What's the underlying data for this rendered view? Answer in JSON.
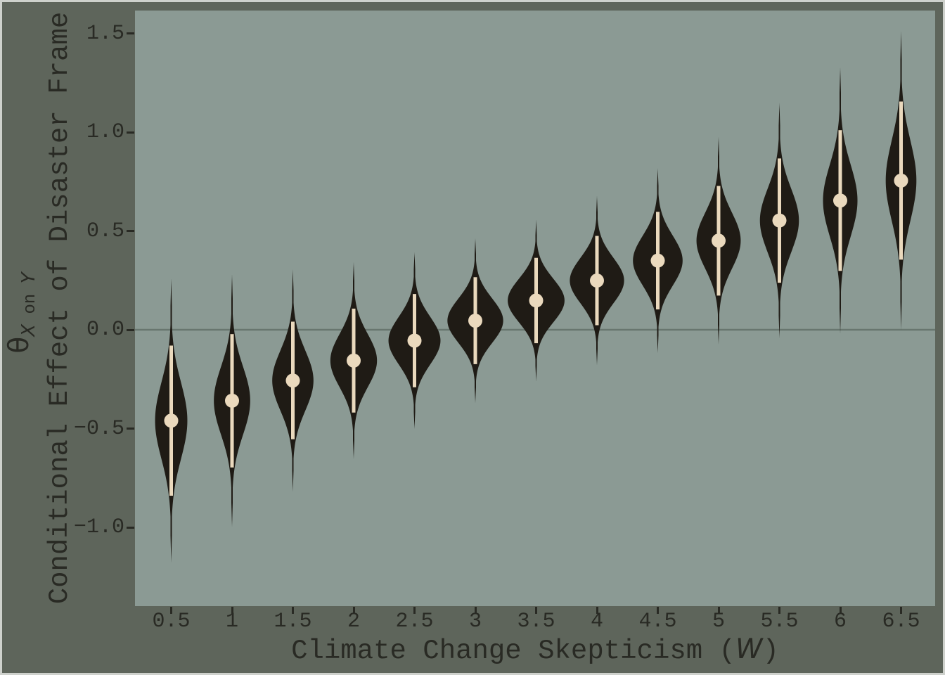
{
  "colors": {
    "figure_background": "#5e655b",
    "panel_background": "#8b9a94",
    "violin_fill": "#1f1b15",
    "interval_and_point": "#ead9bd",
    "zero_line": "#68766f",
    "text": "#292a24",
    "outer_frame": "#ced1cc"
  },
  "x_axis": {
    "label_prefix": "Climate Change Skepticism (",
    "label_var": "W",
    "label_suffix": ")",
    "ticks": [
      {
        "value": 0.5,
        "label": "0.5"
      },
      {
        "value": 1,
        "label": "1"
      },
      {
        "value": 1.5,
        "label": "1.5"
      },
      {
        "value": 2,
        "label": "2"
      },
      {
        "value": 2.5,
        "label": "2.5"
      },
      {
        "value": 3,
        "label": "3"
      },
      {
        "value": 3.5,
        "label": "3.5"
      },
      {
        "value": 4,
        "label": "4"
      },
      {
        "value": 4.5,
        "label": "4.5"
      },
      {
        "value": 5,
        "label": "5"
      },
      {
        "value": 5.5,
        "label": "5.5"
      },
      {
        "value": 6,
        "label": "6"
      },
      {
        "value": 6.5,
        "label": "6.5"
      }
    ]
  },
  "y_axis": {
    "label_main": "Conditional Effect of Disaster Frame",
    "label_theta": "θ",
    "label_theta_sub_x": "X",
    "label_theta_sub_on": " on ",
    "label_theta_sub_y": "Y",
    "ticks": [
      {
        "value": 1.5,
        "label": "1.5"
      },
      {
        "value": 1.0,
        "label": "1.0"
      },
      {
        "value": 0.5,
        "label": "0.5"
      },
      {
        "value": 0.0,
        "label": "0.0"
      },
      {
        "value": -0.5,
        "label": "−0.5"
      },
      {
        "value": -1.0,
        "label": "−1.0"
      }
    ]
  },
  "chart_data": {
    "type": "violin",
    "title": "",
    "xlabel": "Climate Change Skepticism (W)",
    "ylabel": "Conditional Effect of Disaster Frame θ_{X on Y}",
    "xlim": [
      0.2,
      6.78
    ],
    "ylim": [
      -1.4,
      1.62
    ],
    "grid": false,
    "reference_line_y": 0.0,
    "x": [
      0.5,
      1,
      1.5,
      2,
      2.5,
      3,
      3.5,
      4,
      4.5,
      5,
      5.5,
      6,
      6.5
    ],
    "series": [
      {
        "w": 0.5,
        "median": -0.46,
        "ci_low": -0.84,
        "ci_high": -0.08
      },
      {
        "w": 1.0,
        "median": -0.359,
        "ci_low": -0.697,
        "ci_high": -0.022
      },
      {
        "w": 1.5,
        "median": -0.257,
        "ci_low": -0.554,
        "ci_high": 0.041
      },
      {
        "w": 2.0,
        "median": -0.156,
        "ci_low": -0.419,
        "ci_high": 0.107
      },
      {
        "w": 2.5,
        "median": -0.055,
        "ci_low": -0.291,
        "ci_high": 0.181
      },
      {
        "w": 3.0,
        "median": 0.046,
        "ci_low": -0.174,
        "ci_high": 0.266
      },
      {
        "w": 3.5,
        "median": 0.148,
        "ci_low": -0.068,
        "ci_high": 0.364
      },
      {
        "w": 4.0,
        "median": 0.249,
        "ci_low": 0.023,
        "ci_high": 0.475
      },
      {
        "w": 4.5,
        "median": 0.35,
        "ci_low": 0.103,
        "ci_high": 0.597
      },
      {
        "w": 5.0,
        "median": 0.451,
        "ci_low": 0.173,
        "ci_high": 0.728
      },
      {
        "w": 5.5,
        "median": 0.553,
        "ci_low": 0.238,
        "ci_high": 0.867
      },
      {
        "w": 6.0,
        "median": 0.654,
        "ci_low": 0.298,
        "ci_high": 1.01
      },
      {
        "w": 6.5,
        "median": 0.755,
        "ci_low": 0.355,
        "ci_high": 1.155
      }
    ]
  }
}
